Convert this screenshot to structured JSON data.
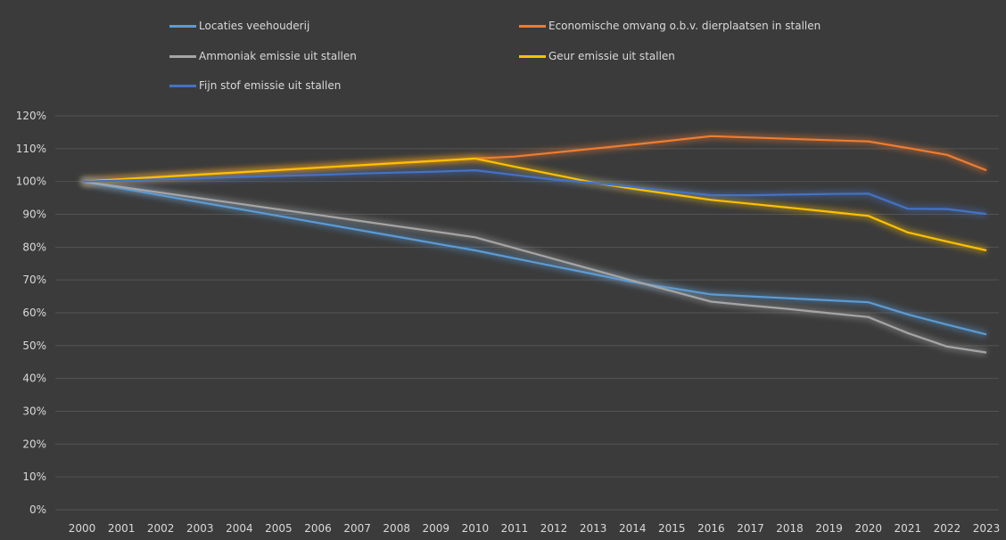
{
  "chart_data": {
    "type": "line",
    "title": "",
    "xlabel": "",
    "ylabel": "",
    "x": [
      "2000",
      "2001",
      "2002",
      "2003",
      "2004",
      "2005",
      "2006",
      "2007",
      "2008",
      "2009",
      "2010",
      "2011",
      "2012",
      "2013",
      "2014",
      "2015",
      "2016",
      "2017",
      "2018",
      "2019",
      "2020",
      "2021",
      "2022",
      "2023"
    ],
    "yticks": [
      "0%",
      "10%",
      "20%",
      "30%",
      "40%",
      "50%",
      "60%",
      "70%",
      "80%",
      "90%",
      "100%",
      "110%",
      "120%"
    ],
    "ylim": [
      0,
      120
    ],
    "grid": "horizontal",
    "legend_position": "top",
    "series": [
      {
        "name": "Locaties veehouderij",
        "color": "#5b9bd5",
        "values": [
          100,
          97.9,
          95.8,
          93.7,
          91.6,
          89.5,
          87.4,
          85.3,
          83.2,
          81.1,
          79,
          76.6,
          74.2,
          71.8,
          69.4,
          67.5,
          65.6,
          65,
          64.4,
          63.8,
          63.2,
          59.5,
          56.4,
          53.4
        ]
      },
      {
        "name": "Economische omvang o.b.v. dierplaatsen in stallen",
        "color": "#ed7d31",
        "values": [
          100,
          100.7,
          101.4,
          102.1,
          102.8,
          103.5,
          104.2,
          104.9,
          105.6,
          106.3,
          107,
          107.6,
          108.8,
          110,
          111.2,
          112.5,
          113.8,
          113.4,
          113,
          112.6,
          112.2,
          110.2,
          108.1,
          103.4
        ]
      },
      {
        "name": "Ammoniak emissie uit stallen",
        "color": "#a5a5a5",
        "values": [
          100,
          98.3,
          96.6,
          94.9,
          93.2,
          91.5,
          89.8,
          88.1,
          86.4,
          84.7,
          83,
          79.7,
          76.4,
          73.1,
          69.8,
          66.6,
          63.4,
          62.2,
          61.1,
          59.9,
          58.7,
          53.8,
          49.7,
          47.9
        ]
      },
      {
        "name": "Geur emissie uit stallen",
        "color": "#ffc000",
        "values": [
          100,
          100.7,
          101.4,
          102.1,
          102.8,
          103.5,
          104.2,
          104.9,
          105.6,
          106.3,
          107,
          104.5,
          102.1,
          99.7,
          97.8,
          96.1,
          94.4,
          93.2,
          92,
          90.8,
          89.5,
          84.5,
          81.7,
          79
        ]
      },
      {
        "name": "Fijn stof emissie uit stallen",
        "color": "#4472c4",
        "values": [
          100,
          100.3,
          100.7,
          101,
          101.4,
          101.7,
          102,
          102.4,
          102.7,
          103,
          103.4,
          102,
          100.6,
          99.6,
          98.4,
          97,
          95.8,
          95.8,
          96,
          96.2,
          96.3,
          91.7,
          91.6,
          90.1
        ]
      }
    ]
  }
}
